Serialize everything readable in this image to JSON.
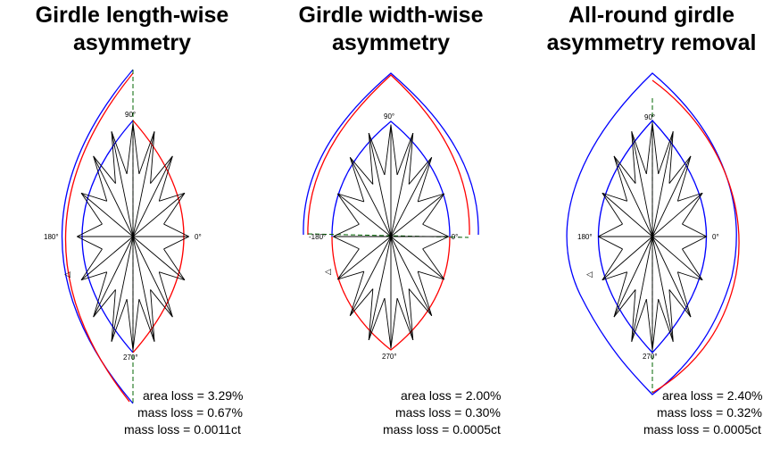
{
  "colors": {
    "outline": "#0000ff",
    "asymmetry": "#ff0000",
    "facets": "#000000",
    "axis": "#006400"
  },
  "panels": [
    {
      "title": "Girdle length-wise\nasymmetry",
      "labels": {
        "top": "90°",
        "left": "180°",
        "right": "0°",
        "bottom": "270°"
      },
      "stats": [
        "area loss = 3.29%",
        "mass loss = 0.67%",
        "mass loss = 0.0011ct"
      ]
    },
    {
      "title": "Girdle width-wise\nasymmetry",
      "labels": {
        "top": "90°",
        "left": "-180°",
        "right": "-0°-",
        "bottom": "270°"
      },
      "stats": [
        "area loss = 2.00%",
        "mass loss = 0.30%",
        "mass loss = 0.0005ct"
      ]
    },
    {
      "title": "All-round girdle\nasymmetry removal",
      "labels": {
        "top": "90°",
        "left": "180°",
        "right": "0°",
        "bottom": "270°"
      },
      "stats": [
        "area loss = 2.40%",
        "mass loss = 0.32%",
        "mass loss = 0.0005ct"
      ]
    }
  ]
}
